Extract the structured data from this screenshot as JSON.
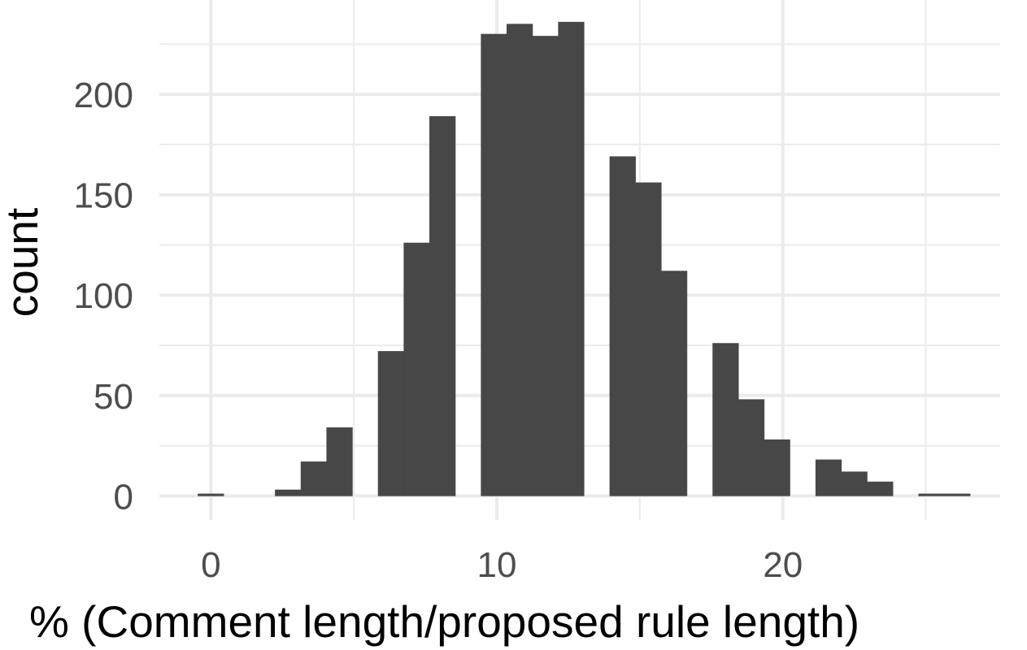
{
  "chart_data": {
    "type": "bar",
    "xlabel": "% (Comment length/proposed rule length)",
    "ylabel": "count",
    "xlim": [
      -1.8,
      27.6
    ],
    "ylim": [
      -12,
      247
    ],
    "grid": true,
    "bin_width": 0.9,
    "x_ticks": [
      0,
      10,
      20
    ],
    "x_tick_labels": [
      "0",
      "10",
      "20"
    ],
    "y_ticks": [
      0,
      50,
      100,
      150,
      200
    ],
    "y_tick_labels": [
      "0",
      "50",
      "100",
      "150",
      "200"
    ],
    "bar_color": "#474747",
    "grid_color": "#ebebeb",
    "bins": [
      {
        "x": 0.0,
        "count": 1
      },
      {
        "x": 0.9,
        "count": 0
      },
      {
        "x": 1.8,
        "count": 0
      },
      {
        "x": 2.7,
        "count": 3
      },
      {
        "x": 3.6,
        "count": 17
      },
      {
        "x": 4.5,
        "count": 34
      },
      {
        "x": 5.4,
        "count": 0
      },
      {
        "x": 6.3,
        "count": 72
      },
      {
        "x": 7.2,
        "count": 126
      },
      {
        "x": 8.1,
        "count": 189
      },
      {
        "x": 9.0,
        "count": 0
      },
      {
        "x": 9.9,
        "count": 230
      },
      {
        "x": 10.8,
        "count": 235
      },
      {
        "x": 11.7,
        "count": 229
      },
      {
        "x": 12.6,
        "count": 236
      },
      {
        "x": 13.5,
        "count": 0
      },
      {
        "x": 14.4,
        "count": 169
      },
      {
        "x": 15.3,
        "count": 156
      },
      {
        "x": 16.2,
        "count": 112
      },
      {
        "x": 17.1,
        "count": 0
      },
      {
        "x": 18.0,
        "count": 76
      },
      {
        "x": 18.9,
        "count": 48
      },
      {
        "x": 19.8,
        "count": 28
      },
      {
        "x": 20.7,
        "count": 0
      },
      {
        "x": 21.6,
        "count": 18
      },
      {
        "x": 22.5,
        "count": 12
      },
      {
        "x": 23.4,
        "count": 7
      },
      {
        "x": 24.3,
        "count": 0
      },
      {
        "x": 25.2,
        "count": 1
      },
      {
        "x": 26.1,
        "count": 1
      }
    ]
  }
}
